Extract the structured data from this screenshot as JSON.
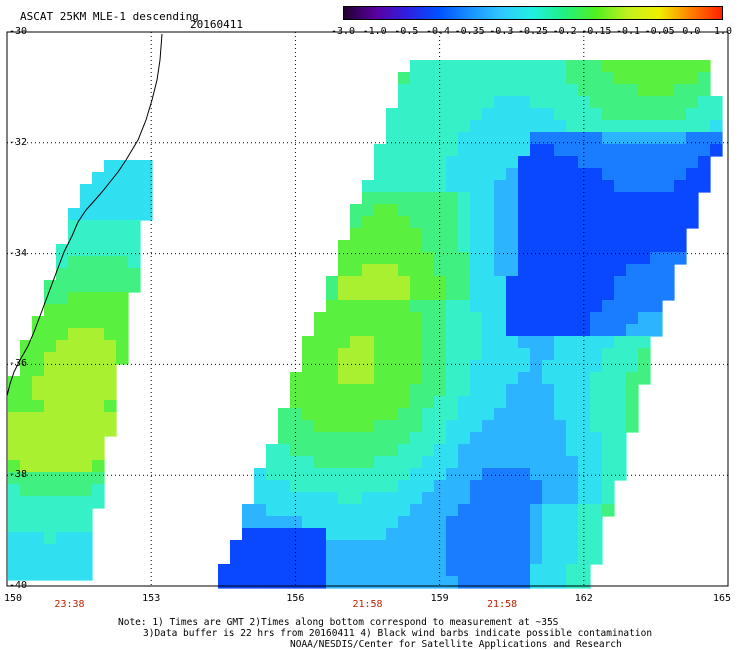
{
  "header": {
    "title": "ASCAT 25KM MLE-1 descending",
    "date": "20160411"
  },
  "colorbar": {
    "labels": [
      "-3.0",
      "-1.0",
      "-0.5",
      "-0.4",
      "-0.35",
      "-0.3",
      "-0.25",
      "-0.2",
      "-0.15",
      "-0.1",
      "-0.05",
      "0.0",
      "1.0"
    ],
    "colors": [
      "#200030",
      "#5a00a0",
      "#3020e0",
      "#0050ff",
      "#1890ff",
      "#30c8ff",
      "#20f0e0",
      "#20f080",
      "#50f020",
      "#c0f020",
      "#f0f000",
      "#ff8000",
      "#ff2000"
    ]
  },
  "axes": {
    "lat_labels": [
      "-30",
      "-32",
      "-34",
      "-36",
      "-38",
      "-40"
    ],
    "lon_labels": [
      "150",
      "153",
      "156",
      "159",
      "162",
      "165"
    ],
    "lat_values": [
      -30,
      -32,
      -34,
      -36,
      -38,
      -40
    ],
    "lon_values": [
      150,
      153,
      156,
      159,
      162,
      165
    ]
  },
  "pass_times": [
    {
      "label": "23:38",
      "lon": 151.3
    },
    {
      "label": "21:58",
      "lon": 157.5
    },
    {
      "label": "21:58",
      "lon": 160.3
    }
  ],
  "notes": [
    "Note: 1) Times are GMT 2)Times along bottom correspond to measurement at ~35S",
    "3)Data buffer is 22 hrs from 20160411 4) Black wind barbs indicate possible contamination",
    "NOAA/NESDIS/Center for Satellite Applications and Research"
  ],
  "map_colors": {
    "grid": "#000000",
    "coast": "#000000",
    "swath_low": "#1060ff",
    "swath_mid": "#30e0f0",
    "swath_high": "#50f040"
  }
}
